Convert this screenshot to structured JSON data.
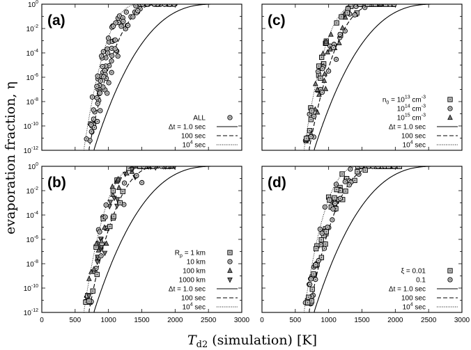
{
  "figure": {
    "ylabel": "evaporation fraction, η",
    "xlabel_main": "T",
    "xlabel_sub": "d2",
    "xlabel_rest": " (simulation) [K]"
  },
  "axes": {
    "xticks": [
      "0",
      "500",
      "1000",
      "1500",
      "2000",
      "2500",
      "3000"
    ],
    "yticks": [
      {
        "base": "10",
        "exp": "0"
      },
      {
        "base": "10",
        "exp": "-2"
      },
      {
        "base": "10",
        "exp": "-4"
      },
      {
        "base": "10",
        "exp": "-6"
      },
      {
        "base": "10",
        "exp": "-8"
      },
      {
        "base": "10",
        "exp": "-10"
      },
      {
        "base": "10",
        "exp": "-12"
      }
    ]
  },
  "panels": {
    "a": {
      "label": "(a)",
      "legend": [
        "ALL",
        "Δt = 1.0 sec",
        "100 sec",
        "10",
        "4",
        " sec"
      ]
    },
    "b": {
      "label": "(b)",
      "legend": [
        "R",
        "p",
        " = 1 km",
        "10 km",
        "100 km",
        "1000 km",
        "Δt = 1.0 sec",
        "100 sec",
        "10",
        "4",
        " sec"
      ]
    },
    "c": {
      "label": "(c)",
      "legend": [
        "n",
        "0",
        " = 10",
        "13",
        " cm",
        "-3",
        "10",
        "14",
        " cm",
        "-3",
        "10",
        "15",
        " cm",
        "-3",
        "Δt = 1.0 sec",
        "100 sec",
        "10",
        "4",
        " sec"
      ]
    },
    "d": {
      "label": "(d)",
      "legend": [
        "ξ = 0.01",
        "0.1",
        "Δt = 1.0 sec",
        "100 sec",
        "10",
        "4",
        " sec"
      ]
    }
  },
  "chart_data": [
    {
      "type": "scatter",
      "panel": "(a)",
      "xlabel": "T_d2 (simulation) [K]",
      "ylabel": "evaporation fraction, η",
      "xlim": [
        0,
        3000
      ],
      "ylim": [
        1e-12,
        1
      ],
      "yscale": "log",
      "series": [
        {
          "name": "ALL",
          "marker": "circle",
          "approx_range": {
            "x": [
              700,
              2100
            ],
            "y": [
              1e-12,
              1
            ]
          }
        },
        {
          "name": "Δt = 1.0 sec",
          "style": "solid",
          "points": [
            [
              780,
              1e-12
            ],
            [
              1000,
              1e-08
            ],
            [
              1300,
              1e-05
            ],
            [
              1600,
              0.001
            ],
            [
              2000,
              0.03
            ],
            [
              2550,
              1
            ]
          ]
        },
        {
          "name": "100 sec",
          "style": "dashed",
          "points": [
            [
              700,
              1e-12
            ],
            [
              850,
              1e-08
            ],
            [
              1050,
              1e-05
            ],
            [
              1300,
              0.001
            ],
            [
              1500,
              0.05
            ],
            [
              1750,
              1
            ]
          ]
        },
        {
          "name": "10^4 sec",
          "style": "dotted",
          "points": [
            [
              630,
              1e-12
            ],
            [
              750,
              1e-08
            ],
            [
              950,
              1e-05
            ],
            [
              1150,
              0.01
            ],
            [
              1300,
              0.1
            ],
            [
              1450,
              1
            ]
          ]
        }
      ]
    },
    {
      "type": "scatter",
      "panel": "(b)",
      "xlim": [
        0,
        3000
      ],
      "ylim": [
        1e-12,
        1
      ],
      "yscale": "log",
      "series": [
        {
          "name": "R_p = 1 km",
          "marker": "square"
        },
        {
          "name": "10 km",
          "marker": "circle"
        },
        {
          "name": "100 km",
          "marker": "triangle-up"
        },
        {
          "name": "1000 km",
          "marker": "triangle-down"
        },
        {
          "name": "Δt = 1.0 sec",
          "style": "solid"
        },
        {
          "name": "100 sec",
          "style": "dashed"
        },
        {
          "name": "10^4 sec",
          "style": "dotted"
        }
      ]
    },
    {
      "type": "scatter",
      "panel": "(c)",
      "xlim": [
        0,
        3000
      ],
      "ylim": [
        1e-12,
        1
      ],
      "yscale": "log",
      "series": [
        {
          "name": "n_0 = 10^13 cm^-3",
          "marker": "square"
        },
        {
          "name": "10^14 cm^-3",
          "marker": "circle"
        },
        {
          "name": "10^15 cm^-3",
          "marker": "triangle-up"
        },
        {
          "name": "Δt = 1.0 sec",
          "style": "solid"
        },
        {
          "name": "100 sec",
          "style": "dashed"
        },
        {
          "name": "10^4 sec",
          "style": "dotted"
        }
      ]
    },
    {
      "type": "scatter",
      "panel": "(d)",
      "xlim": [
        0,
        3000
      ],
      "ylim": [
        1e-12,
        1
      ],
      "yscale": "log",
      "series": [
        {
          "name": "ξ = 0.01",
          "marker": "square"
        },
        {
          "name": "0.1",
          "marker": "circle"
        },
        {
          "name": "Δt = 1.0 sec",
          "style": "solid"
        },
        {
          "name": "100 sec",
          "style": "dashed"
        },
        {
          "name": "10^4 sec",
          "style": "dotted"
        }
      ]
    }
  ]
}
